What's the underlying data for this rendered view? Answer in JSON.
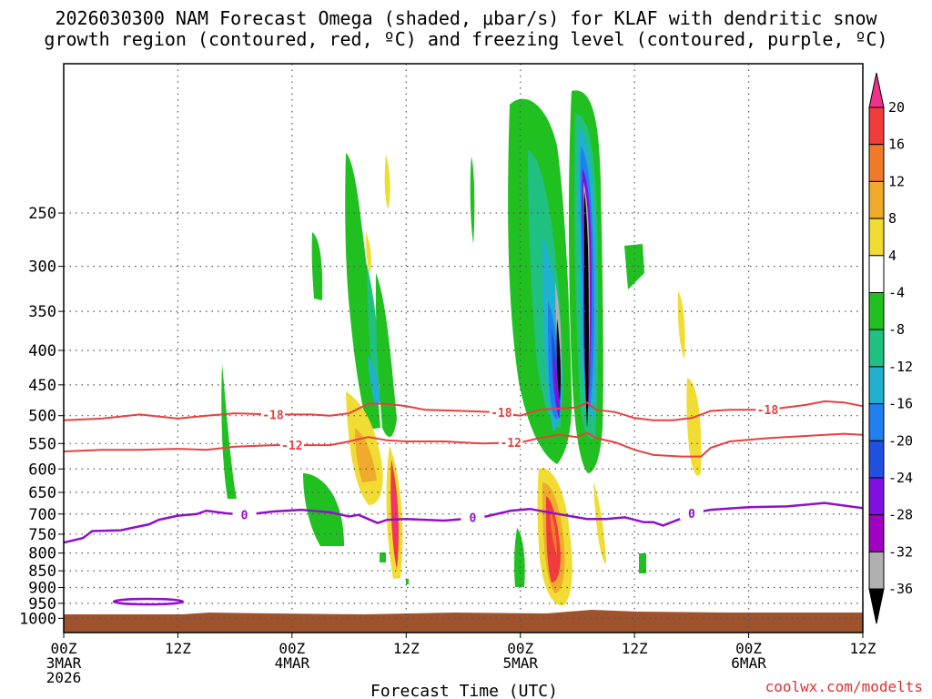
{
  "chart_data": {
    "type": "heatmap",
    "title_line1": "2026030300 NAM Forecast Omega (shaded, μbar/s) for KLAF with dendritic snow",
    "title_line2": "growth region (contoured, red, ºC) and freezing level (contoured, purple, ºC)",
    "xlabel": "Forecast Time (UTC)",
    "credit": "coolwx.com/modelts",
    "x_range_hours": [
      0,
      84
    ],
    "y_range_hpa": [
      1050,
      150
    ],
    "y_ticks": [
      250,
      300,
      350,
      400,
      450,
      500,
      550,
      600,
      650,
      700,
      750,
      800,
      850,
      900,
      950,
      1000
    ],
    "x_ticks": [
      {
        "h": 0,
        "l1": "00Z",
        "l2": "3MAR",
        "l3": "2026"
      },
      {
        "h": 12,
        "l1": "12Z",
        "l2": "",
        "l3": ""
      },
      {
        "h": 24,
        "l1": "00Z",
        "l2": "4MAR",
        "l3": ""
      },
      {
        "h": 36,
        "l1": "12Z",
        "l2": "",
        "l3": ""
      },
      {
        "h": 48,
        "l1": "00Z",
        "l2": "5MAR",
        "l3": ""
      },
      {
        "h": 60,
        "l1": "12Z",
        "l2": "",
        "l3": ""
      },
      {
        "h": 72,
        "l1": "00Z",
        "l2": "6MAR",
        "l3": ""
      },
      {
        "h": 84,
        "l1": "12Z",
        "l2": "",
        "l3": ""
      }
    ],
    "colorbar": {
      "labels": [
        "20",
        "16",
        "12",
        "8",
        "4",
        "-4",
        "-8",
        "-12",
        "-16",
        "-20",
        "-24",
        "-28",
        "-32",
        "-36"
      ],
      "colors": [
        "#f0308a",
        "#f03c3c",
        "#f07a28",
        "#f0aa2c",
        "#f0dc32",
        "#ffffff",
        "#20c020",
        "#20c080",
        "#20b0d0",
        "#2080f0",
        "#2050e0",
        "#8010e0",
        "#a000c0",
        "#b0b0b0",
        "#000000"
      ]
    },
    "contours": {
      "isotherm_m18": {
        "label": "-18",
        "color": "#e84040",
        "points": [
          [
            0,
            508
          ],
          [
            4,
            505
          ],
          [
            8,
            498
          ],
          [
            12,
            505
          ],
          [
            15,
            500
          ],
          [
            18,
            496
          ],
          [
            22,
            498
          ],
          [
            26,
            498
          ],
          [
            28,
            500
          ],
          [
            30,
            496
          ],
          [
            32,
            480
          ],
          [
            34,
            480
          ],
          [
            36,
            484
          ],
          [
            38,
            490
          ],
          [
            42,
            492
          ],
          [
            45,
            494
          ],
          [
            48,
            500
          ],
          [
            50,
            490
          ],
          [
            52,
            488
          ],
          [
            54,
            486
          ],
          [
            55,
            478
          ],
          [
            56,
            490
          ],
          [
            58,
            494
          ],
          [
            60,
            504
          ],
          [
            62,
            508
          ],
          [
            64,
            508
          ],
          [
            66,
            504
          ],
          [
            68,
            492
          ],
          [
            70,
            490
          ],
          [
            74,
            490
          ],
          [
            78,
            482
          ],
          [
            80,
            476
          ],
          [
            82,
            478
          ],
          [
            84,
            484
          ]
        ],
        "labels_at": [
          [
            22,
            498
          ],
          [
            46,
            494
          ],
          [
            74,
            490
          ]
        ]
      },
      "isotherm_m12": {
        "label": "-12",
        "color": "#e84040",
        "points": [
          [
            0,
            565
          ],
          [
            4,
            562
          ],
          [
            8,
            562
          ],
          [
            12,
            560
          ],
          [
            15,
            562
          ],
          [
            18,
            556
          ],
          [
            22,
            553
          ],
          [
            26,
            553
          ],
          [
            28,
            553
          ],
          [
            30,
            546
          ],
          [
            32,
            538
          ],
          [
            34,
            544
          ],
          [
            36,
            546
          ],
          [
            40,
            546
          ],
          [
            44,
            550
          ],
          [
            48,
            548
          ],
          [
            50,
            540
          ],
          [
            52,
            534
          ],
          [
            54,
            538
          ],
          [
            55,
            530
          ],
          [
            56,
            540
          ],
          [
            58,
            548
          ],
          [
            60,
            562
          ],
          [
            62,
            572
          ],
          [
            65,
            575
          ],
          [
            67,
            575
          ],
          [
            68,
            558
          ],
          [
            70,
            546
          ],
          [
            74,
            540
          ],
          [
            78,
            536
          ],
          [
            82,
            532
          ],
          [
            84,
            534
          ]
        ],
        "labels_at": [
          [
            24,
            553
          ],
          [
            47,
            548
          ]
        ]
      },
      "freezing_level": {
        "label": "0",
        "color": "#9010c8",
        "points": [
          [
            0,
            772
          ],
          [
            2,
            760
          ],
          [
            3,
            742
          ],
          [
            6,
            740
          ],
          [
            9,
            725
          ],
          [
            10,
            714
          ],
          [
            12,
            704
          ],
          [
            14,
            700
          ],
          [
            15,
            692
          ],
          [
            17,
            698
          ],
          [
            19,
            702
          ],
          [
            22,
            694
          ],
          [
            25,
            690
          ],
          [
            28,
            696
          ],
          [
            30,
            706
          ],
          [
            31,
            702
          ],
          [
            32,
            712
          ],
          [
            33,
            722
          ],
          [
            34,
            714
          ],
          [
            36,
            712
          ],
          [
            40,
            716
          ],
          [
            44,
            708
          ],
          [
            47,
            692
          ],
          [
            49,
            688
          ],
          [
            52,
            700
          ],
          [
            55,
            712
          ],
          [
            57,
            712
          ],
          [
            59,
            708
          ],
          [
            61,
            720
          ],
          [
            62,
            720
          ],
          [
            63,
            728
          ],
          [
            65,
            710
          ],
          [
            66,
            698
          ],
          [
            68,
            690
          ],
          [
            72,
            684
          ],
          [
            76,
            682
          ],
          [
            80,
            674
          ],
          [
            84,
            686
          ]
        ],
        "labels_at": [
          [
            19,
            702
          ],
          [
            43,
            708
          ],
          [
            66,
            698
          ]
        ]
      }
    }
  }
}
